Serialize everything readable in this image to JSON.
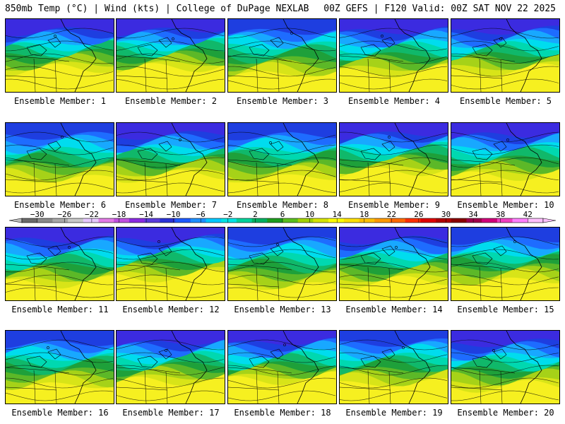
{
  "header": {
    "left": "850mb Temp (°C) | Wind (kts) | College of DuPage NEXLAB",
    "right": "00Z GEFS | F120 Valid: 00Z SAT NOV 22 2025"
  },
  "caption_prefix": "Ensemble Member: ",
  "members": [
    {
      "id": 1,
      "caption": "Ensemble Member: 1",
      "cold": 0.8
    },
    {
      "id": 2,
      "caption": "Ensemble Member: 2",
      "cold": 0.85
    },
    {
      "id": 3,
      "caption": "Ensemble Member: 3",
      "cold": 0.45
    },
    {
      "id": 4,
      "caption": "Ensemble Member: 4",
      "cold": 0.7
    },
    {
      "id": 5,
      "caption": "Ensemble Member: 5",
      "cold": 0.75
    },
    {
      "id": 6,
      "caption": "Ensemble Member: 6",
      "cold": 0.4
    },
    {
      "id": 7,
      "caption": "Ensemble Member: 7",
      "cold": 0.7
    },
    {
      "id": 8,
      "caption": "Ensemble Member: 8",
      "cold": 0.45
    },
    {
      "id": 9,
      "caption": "Ensemble Member: 9",
      "cold": 0.85
    },
    {
      "id": 10,
      "caption": "Ensemble Member: 10",
      "cold": 0.7
    },
    {
      "id": 11,
      "caption": "Ensemble Member: 11",
      "cold": 0.6
    },
    {
      "id": 12,
      "caption": "Ensemble Member: 12",
      "cold": 0.85
    },
    {
      "id": 13,
      "caption": "Ensemble Member: 13",
      "cold": 0.3
    },
    {
      "id": 14,
      "caption": "Ensemble Member: 14",
      "cold": 0.65
    },
    {
      "id": 15,
      "caption": "Ensemble Member: 15",
      "cold": 0.5
    },
    {
      "id": 16,
      "caption": "Ensemble Member: 16",
      "cold": 0.45
    },
    {
      "id": 17,
      "caption": "Ensemble Member: 17",
      "cold": 0.8
    },
    {
      "id": 18,
      "caption": "Ensemble Member: 18",
      "cold": 0.85
    },
    {
      "id": 19,
      "caption": "Ensemble Member: 19",
      "cold": 0.55
    },
    {
      "id": 20,
      "caption": "Ensemble Member: 20",
      "cold": 0.6
    }
  ],
  "colorbar": {
    "labels": [
      "−30",
      "−26",
      "−22",
      "−18",
      "−14",
      "−10",
      "−6",
      "−2",
      "2",
      "6",
      "10",
      "14",
      "18",
      "22",
      "26",
      "30",
      "34",
      "38",
      "42"
    ],
    "colors": [
      "#6b6b6b",
      "#8a8a8a",
      "#a8a8a8",
      "#c8c8c8",
      "#e6c8ff",
      "#e37be6",
      "#c050e0",
      "#8a2be2",
      "#5a3cdc",
      "#2b33d8",
      "#1e5aff",
      "#1e90ff",
      "#00c8ff",
      "#00e5e5",
      "#00d29a",
      "#00b060",
      "#1e9e1e",
      "#5abf1e",
      "#a3d200",
      "#d6e400",
      "#ffff00",
      "#ffe000",
      "#ffc000",
      "#ff9a00",
      "#ff6a00",
      "#ff3000",
      "#e00000",
      "#b00000",
      "#8a0000",
      "#a0004a",
      "#d0007a",
      "#f040c0",
      "#ff80ff",
      "#ffc0ff"
    ]
  },
  "palette": {
    "temperature_scale": [
      "#7a1fe6",
      "#3b2be0",
      "#1e3ee0",
      "#1e6cff",
      "#18a8ff",
      "#00dcee",
      "#00d8b0",
      "#10b86a",
      "#1ea03a",
      "#5cb828",
      "#a6d218",
      "#d8e418",
      "#f6f020"
    ]
  }
}
